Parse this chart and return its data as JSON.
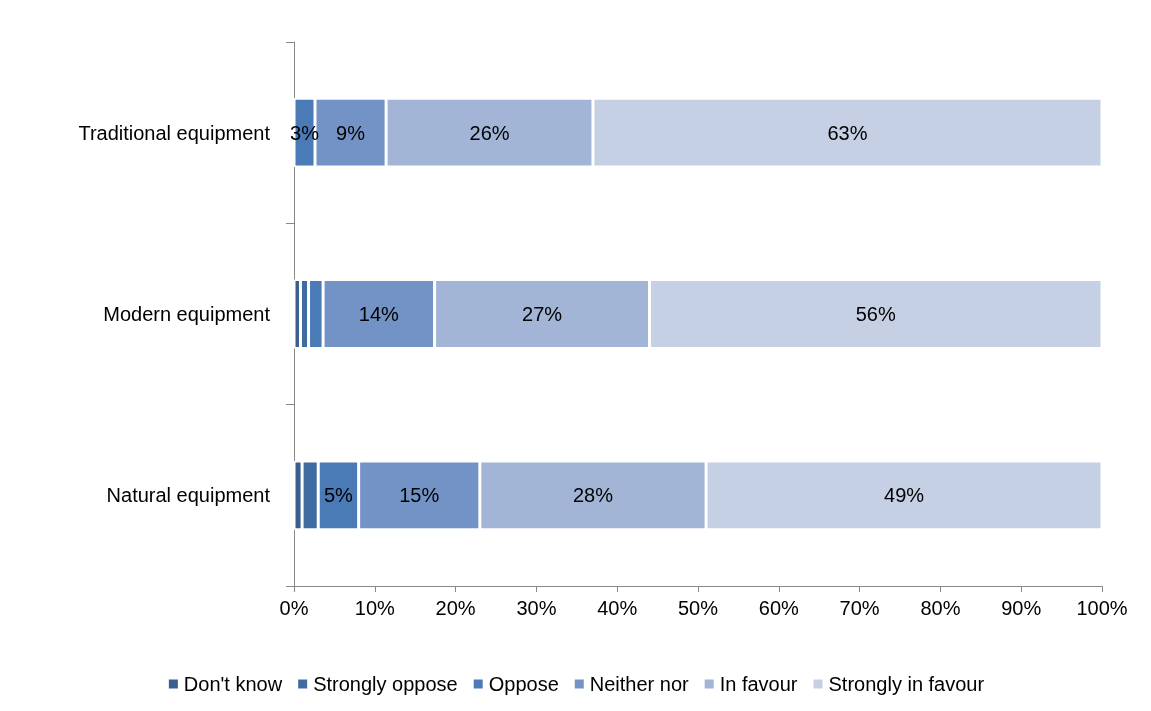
{
  "chart_data": {
    "type": "bar",
    "orientation": "horizontal",
    "stacked": true,
    "legend": "bottom",
    "grid": false,
    "categories": [
      "Traditional equipment",
      "Modern equipment",
      "Natural equipment"
    ],
    "xlim": [
      0,
      100
    ],
    "xticks": [
      {
        "value": 0,
        "label": "0%"
      },
      {
        "value": 10,
        "label": "10%"
      },
      {
        "value": 20,
        "label": "20%"
      },
      {
        "value": 30,
        "label": "30%"
      },
      {
        "value": 40,
        "label": "40%"
      },
      {
        "value": 50,
        "label": "50%"
      },
      {
        "value": 60,
        "label": "60%"
      },
      {
        "value": 70,
        "label": "70%"
      },
      {
        "value": 80,
        "label": "80%"
      },
      {
        "value": 90,
        "label": "90%"
      },
      {
        "value": 100,
        "label": "100%"
      }
    ],
    "series": [
      {
        "name": "Don't know",
        "color": "#3a5f8f",
        "values": [
          0,
          0.8,
          1
        ],
        "value_labels": [
          null,
          null,
          null
        ]
      },
      {
        "name": "Strongly oppose",
        "color": "#3f6ba0",
        "values": [
          0,
          1,
          2
        ],
        "value_labels": [
          null,
          null,
          null
        ]
      },
      {
        "name": "Oppose",
        "color": "#4a7bb7",
        "values": [
          2.6,
          1.8,
          5
        ],
        "value_labels": [
          "3%",
          null,
          "5%"
        ]
      },
      {
        "name": "Neither nor",
        "color": "#7393c6",
        "values": [
          8.8,
          13.8,
          15
        ],
        "value_labels": [
          "9%",
          "14%",
          "15%"
        ]
      },
      {
        "name": "In favour",
        "color": "#a2b5d6",
        "values": [
          25.6,
          26.6,
          28
        ],
        "value_labels": [
          "26%",
          "27%",
          "28%"
        ]
      },
      {
        "name": "Strongly in favour",
        "color": "#c5d0e4",
        "values": [
          63,
          56,
          49
        ],
        "value_labels": [
          "63%",
          "56%",
          "49%"
        ]
      }
    ]
  }
}
